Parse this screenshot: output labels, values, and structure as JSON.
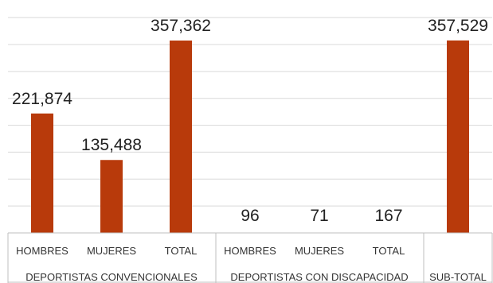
{
  "chart_data": {
    "type": "bar",
    "title": "",
    "xlabel": "",
    "ylabel": "",
    "colors": {
      "bar": "#b83a0b",
      "grid": "#d9d9d9",
      "frame": "#bfbfbf"
    },
    "bars": [
      {
        "category": "HOMBRES",
        "value": 221874,
        "label": "221,874"
      },
      {
        "category": "MUJERES",
        "value": 135488,
        "label": "135,488"
      },
      {
        "category": "TOTAL",
        "value": 357362,
        "label": "357,362"
      },
      {
        "category": "HOMBRES",
        "value": 96,
        "label": "96"
      },
      {
        "category": "MUJERES",
        "value": 71,
        "label": "71"
      },
      {
        "category": "TOTAL",
        "value": 167,
        "label": "167"
      },
      {
        "category": "SUB-TOTAL",
        "value": 357529,
        "label": "357,529"
      }
    ],
    "groups": [
      {
        "name": "DEPORTISTAS CONVENCIONALES",
        "bars": [
          0,
          1,
          2
        ]
      },
      {
        "name": "DEPORTISTAS CON DISCAPACIDAD",
        "bars": [
          3,
          4,
          5
        ]
      },
      {
        "name": "",
        "bars": [
          6
        ]
      }
    ],
    "ylim": [
      0,
      450000
    ],
    "grid": true,
    "legend": "none"
  }
}
